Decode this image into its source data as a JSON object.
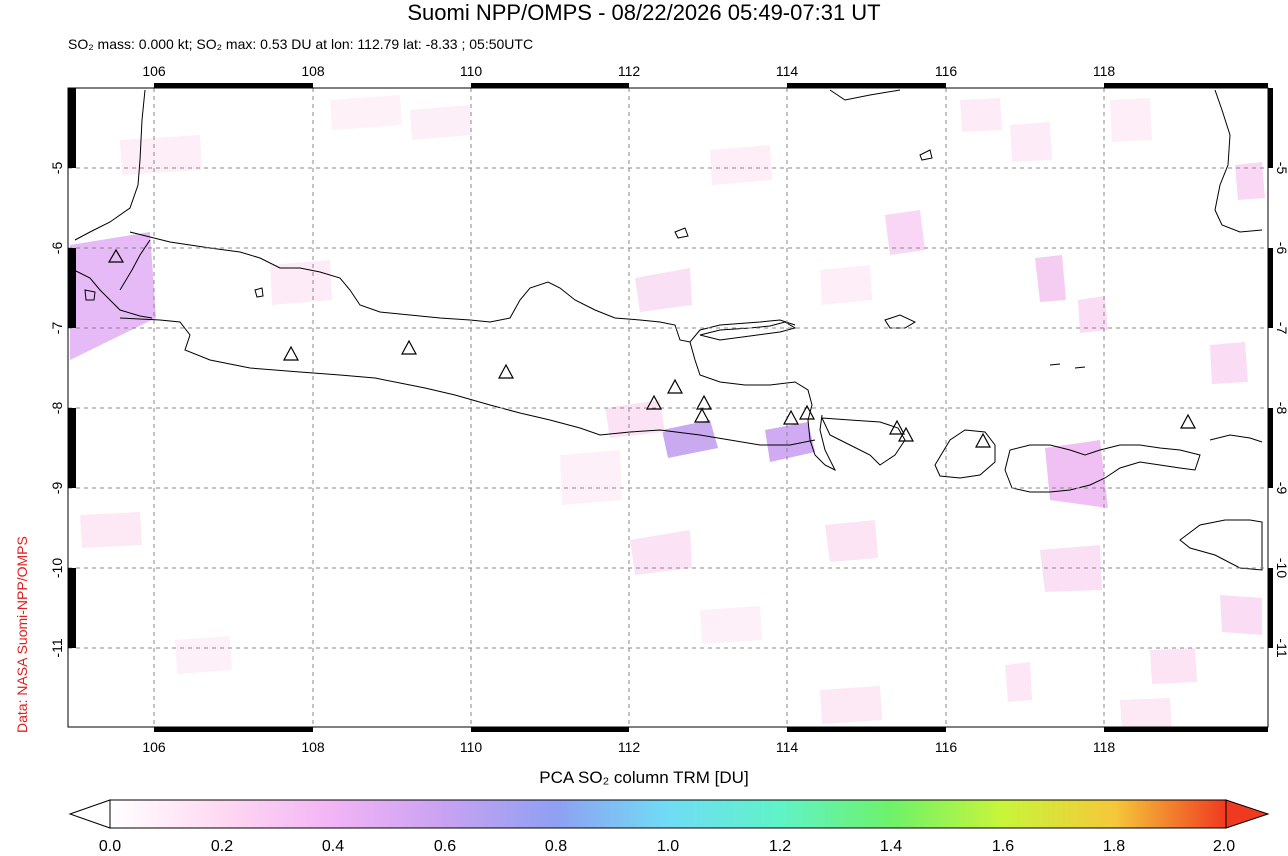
{
  "title": "Suomi NPP/OMPS - 08/22/2026 05:49-07:31 UT",
  "subtitle": "SO₂ mass: 0.000 kt; SO₂ max: 0.53 DU at lon: 112.79 lat: -8.33 ; 05:50UTC",
  "credit": "Data: NASA Suomi-NPP/OMPS",
  "colorbar": {
    "label": "PCA SO₂ column TRM [DU]",
    "ticks": [
      "0.0",
      "0.2",
      "0.4",
      "0.6",
      "0.8",
      "1.0",
      "1.2",
      "1.4",
      "1.6",
      "1.8",
      "2.0"
    ],
    "colors": [
      "#ffffff",
      "#ffd9f2",
      "#e7a8f5",
      "#b99cf3",
      "#8aa4f5",
      "#69d7f5",
      "#5ff3c8",
      "#6ef26a",
      "#c8f53a",
      "#f5e93a",
      "#f5a030",
      "#f03a20"
    ]
  },
  "map": {
    "lon_ticks": [
      "106",
      "108",
      "110",
      "112",
      "114",
      "116",
      "118"
    ],
    "lat_ticks": [
      "-5",
      "-6",
      "-7",
      "-8",
      "-9",
      "-10",
      "-11"
    ],
    "volcano_icon": "triangle-icon"
  }
}
